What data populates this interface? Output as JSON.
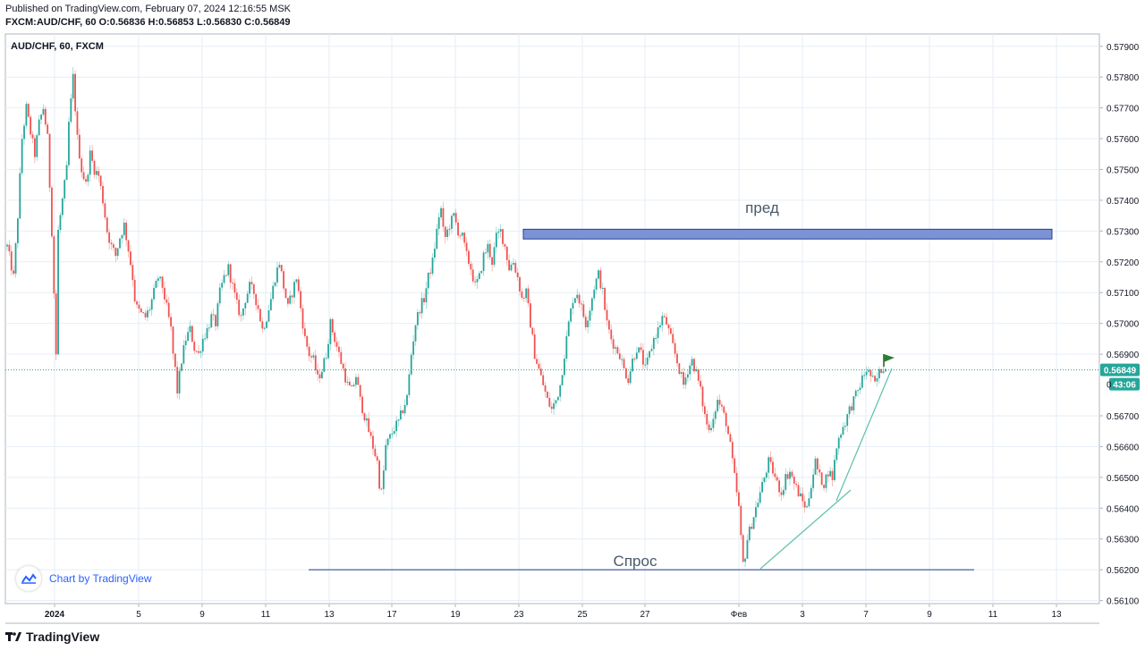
{
  "header": {
    "published": "Published on TradingView.com, February 07, 2024 12:16:55 MSK",
    "quote": "FXCM:AUD/CHF, 60 O:0.56836 H:0.56853 L:0.56830 C:0.56849"
  },
  "symbol_label": "AUD/CHF, 60, FXCM",
  "watermark": {
    "label": "Chart by TradingView",
    "icon": "tradingview-cloud-icon"
  },
  "footer": {
    "brand": "TradingView",
    "icon": "tradingview-logo-icon"
  },
  "colors": {
    "up": "#26a69a",
    "down": "#ef5350",
    "grid": "#e6eef6",
    "zone": "#7b93d6",
    "zone_border": "#2a3f8f",
    "support": "#1e3a8a",
    "trend": "#5cc1a8",
    "last_price": "#26a69a"
  },
  "chart_data": {
    "type": "candlestick",
    "timeframe": "60",
    "y_ticks": [
      "0.57900",
      "0.57800",
      "0.57700",
      "0.57600",
      "0.57500",
      "0.57400",
      "0.57300",
      "0.57200",
      "0.57100",
      "0.57000",
      "0.56900",
      "0.56700",
      "0.56600",
      "0.56500",
      "0.56400",
      "0.56300",
      "0.56200",
      "0.56100"
    ],
    "ylim": [
      0.5609,
      0.5794
    ],
    "x_ticks": [
      "2024",
      "5",
      "9",
      "11",
      "13",
      "17",
      "19",
      "23",
      "25",
      "27",
      "Фев",
      "3",
      "7",
      "9",
      "11",
      "13"
    ],
    "last_price": {
      "label": "0.56849",
      "value": 0.56849,
      "countdown": "43:06"
    },
    "price_fragment": "0",
    "annotations": [
      {
        "type": "zone",
        "label": "пред",
        "y_low": 0.5728,
        "y_high": 0.573
      },
      {
        "type": "line",
        "label": "Спрос",
        "y": 0.562
      }
    ],
    "close_path": [
      [
        0,
        0.5725
      ],
      [
        3,
        0.5715
      ],
      [
        5,
        0.5735
      ],
      [
        7,
        0.576
      ],
      [
        9,
        0.577
      ],
      [
        11,
        0.5762
      ],
      [
        13,
        0.5755
      ],
      [
        15,
        0.5765
      ],
      [
        17,
        0.577
      ],
      [
        19,
        0.576
      ],
      [
        21,
        0.573
      ],
      [
        22,
        0.571
      ],
      [
        23,
        0.569
      ],
      [
        24,
        0.573
      ],
      [
        26,
        0.574
      ],
      [
        28,
        0.575
      ],
      [
        29,
        0.5765
      ],
      [
        30,
        0.5772
      ],
      [
        31,
        0.578
      ],
      [
        32,
        0.577
      ],
      [
        33,
        0.576
      ],
      [
        35,
        0.575
      ],
      [
        37,
        0.5745
      ],
      [
        39,
        0.5755
      ],
      [
        41,
        0.575
      ],
      [
        43,
        0.5748
      ],
      [
        45,
        0.574
      ],
      [
        47,
        0.573
      ],
      [
        49,
        0.5725
      ],
      [
        51,
        0.5722
      ],
      [
        53,
        0.5728
      ],
      [
        55,
        0.5732
      ],
      [
        57,
        0.5724
      ],
      [
        59,
        0.5715
      ],
      [
        60,
        0.5708
      ],
      [
        61,
        0.5705
      ],
      [
        63,
        0.5703
      ],
      [
        65,
        0.5702
      ],
      [
        67,
        0.5705
      ],
      [
        69,
        0.571
      ],
      [
        71,
        0.5715
      ],
      [
        73,
        0.5712
      ],
      [
        75,
        0.5705
      ],
      [
        77,
        0.5698
      ],
      [
        78,
        0.569
      ],
      [
        79,
        0.5685
      ],
      [
        80,
        0.5678
      ],
      [
        82,
        0.5688
      ],
      [
        84,
        0.5695
      ],
      [
        86,
        0.5698
      ],
      [
        88,
        0.5692
      ],
      [
        90,
        0.569
      ],
      [
        92,
        0.5695
      ],
      [
        94,
        0.5698
      ],
      [
        96,
        0.5702
      ],
      [
        98,
        0.57
      ],
      [
        100,
        0.571
      ],
      [
        102,
        0.5715
      ],
      [
        104,
        0.5718
      ],
      [
        106,
        0.5712
      ],
      [
        108,
        0.5706
      ],
      [
        110,
        0.5702
      ],
      [
        112,
        0.5708
      ],
      [
        114,
        0.5712
      ],
      [
        116,
        0.571
      ],
      [
        118,
        0.5705
      ],
      [
        120,
        0.5698
      ],
      [
        122,
        0.5702
      ],
      [
        124,
        0.5708
      ],
      [
        126,
        0.5715
      ],
      [
        128,
        0.572
      ],
      [
        130,
        0.5712
      ],
      [
        132,
        0.5705
      ],
      [
        134,
        0.571
      ],
      [
        136,
        0.5715
      ],
      [
        138,
        0.5705
      ],
      [
        140,
        0.5695
      ],
      [
        142,
        0.569
      ],
      [
        144,
        0.5688
      ],
      [
        146,
        0.5682
      ],
      [
        148,
        0.5685
      ],
      [
        150,
        0.569
      ],
      [
        152,
        0.57
      ],
      [
        154,
        0.5695
      ],
      [
        156,
        0.569
      ],
      [
        158,
        0.5685
      ],
      [
        160,
        0.568
      ],
      [
        162,
        0.5678
      ],
      [
        164,
        0.5683
      ],
      [
        166,
        0.5675
      ],
      [
        168,
        0.567
      ],
      [
        170,
        0.5665
      ],
      [
        172,
        0.566
      ],
      [
        174,
        0.5655
      ],
      [
        175,
        0.5648
      ],
      [
        176,
        0.5645
      ],
      [
        177,
        0.5652
      ],
      [
        178,
        0.566
      ],
      [
        180,
        0.5663
      ],
      [
        182,
        0.5666
      ],
      [
        184,
        0.5668
      ],
      [
        186,
        0.5672
      ],
      [
        188,
        0.5676
      ],
      [
        190,
        0.569
      ],
      [
        192,
        0.57
      ],
      [
        194,
        0.5705
      ],
      [
        196,
        0.5708
      ],
      [
        198,
        0.5715
      ],
      [
        200,
        0.572
      ],
      [
        202,
        0.573
      ],
      [
        203,
        0.5735
      ],
      [
        204,
        0.5737
      ],
      [
        205,
        0.573
      ],
      [
        206,
        0.5728
      ],
      [
        208,
        0.5732
      ],
      [
        210,
        0.5735
      ],
      [
        212,
        0.573
      ],
      [
        214,
        0.5728
      ],
      [
        216,
        0.5722
      ],
      [
        218,
        0.5718
      ],
      [
        220,
        0.5712
      ],
      [
        222,
        0.5715
      ],
      [
        224,
        0.5722
      ],
      [
        226,
        0.5725
      ],
      [
        228,
        0.572
      ],
      [
        230,
        0.5728
      ],
      [
        232,
        0.573
      ],
      [
        234,
        0.5725
      ],
      [
        236,
        0.5718
      ],
      [
        238,
        0.572
      ],
      [
        240,
        0.5715
      ],
      [
        242,
        0.5708
      ],
      [
        244,
        0.571
      ],
      [
        246,
        0.57
      ],
      [
        248,
        0.569
      ],
      [
        250,
        0.5685
      ],
      [
        252,
        0.568
      ],
      [
        254,
        0.5675
      ],
      [
        256,
        0.5672
      ],
      [
        258,
        0.5675
      ],
      [
        260,
        0.568
      ],
      [
        262,
        0.569
      ],
      [
        264,
        0.57
      ],
      [
        266,
        0.5708
      ],
      [
        268,
        0.571
      ],
      [
        270,
        0.5705
      ],
      [
        272,
        0.57
      ],
      [
        274,
        0.5705
      ],
      [
        276,
        0.5712
      ],
      [
        278,
        0.5716
      ],
      [
        280,
        0.571
      ],
      [
        282,
        0.57
      ],
      [
        284,
        0.5695
      ],
      [
        286,
        0.5692
      ],
      [
        288,
        0.569
      ],
      [
        290,
        0.5685
      ],
      [
        292,
        0.5682
      ],
      [
        294,
        0.5688
      ],
      [
        296,
        0.5692
      ],
      [
        298,
        0.569
      ],
      [
        300,
        0.5685
      ],
      [
        302,
        0.569
      ],
      [
        304,
        0.5695
      ],
      [
        306,
        0.5698
      ],
      [
        308,
        0.5702
      ],
      [
        310,
        0.57
      ],
      [
        312,
        0.5695
      ],
      [
        314,
        0.569
      ],
      [
        316,
        0.5685
      ],
      [
        318,
        0.568
      ],
      [
        320,
        0.5685
      ],
      [
        322,
        0.5688
      ],
      [
        324,
        0.5684
      ],
      [
        326,
        0.5678
      ],
      [
        328,
        0.567
      ],
      [
        330,
        0.5665
      ],
      [
        332,
        0.567
      ],
      [
        334,
        0.5675
      ],
      [
        336,
        0.5672
      ],
      [
        338,
        0.5668
      ],
      [
        340,
        0.566
      ],
      [
        342,
        0.565
      ],
      [
        344,
        0.564
      ],
      [
        345,
        0.563
      ],
      [
        346,
        0.5622
      ],
      [
        347,
        0.5625
      ],
      [
        348,
        0.563
      ],
      [
        350,
        0.5635
      ],
      [
        352,
        0.564
      ],
      [
        354,
        0.5645
      ],
      [
        356,
        0.565
      ],
      [
        358,
        0.5655
      ],
      [
        360,
        0.5652
      ],
      [
        362,
        0.5648
      ],
      [
        364,
        0.5645
      ],
      [
        366,
        0.565
      ],
      [
        368,
        0.5652
      ],
      [
        370,
        0.5648
      ],
      [
        372,
        0.5645
      ],
      [
        374,
        0.5642
      ],
      [
        376,
        0.564
      ],
      [
        378,
        0.5648
      ],
      [
        380,
        0.5655
      ],
      [
        382,
        0.565
      ],
      [
        384,
        0.5648
      ],
      [
        386,
        0.5652
      ],
      [
        388,
        0.565
      ],
      [
        390,
        0.566
      ],
      [
        392,
        0.5665
      ],
      [
        394,
        0.5668
      ],
      [
        396,
        0.5672
      ],
      [
        398,
        0.5675
      ],
      [
        400,
        0.5678
      ],
      [
        402,
        0.5682
      ],
      [
        404,
        0.5685
      ],
      [
        406,
        0.5683
      ],
      [
        408,
        0.568
      ],
      [
        410,
        0.5684
      ],
      [
        412,
        0.5686
      ],
      [
        413,
        0.5685
      ]
    ],
    "x_range": [
      0,
      413
    ]
  }
}
